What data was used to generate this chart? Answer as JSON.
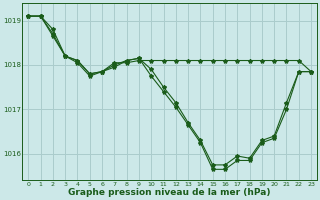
{
  "background_color": "#cce8e8",
  "grid_color": "#aacccc",
  "line_color": "#1a5c1a",
  "title": "Graphe pression niveau de la mer (hPa)",
  "ylim": [
    1015.4,
    1019.4
  ],
  "xlim": [
    -0.5,
    23.5
  ],
  "yticks": [
    1016,
    1017,
    1018,
    1019
  ],
  "xticks": [
    0,
    1,
    2,
    3,
    4,
    5,
    6,
    7,
    8,
    9,
    10,
    11,
    12,
    13,
    14,
    15,
    16,
    17,
    18,
    19,
    20,
    21,
    22,
    23
  ],
  "series": [
    {
      "x": [
        0,
        1,
        2,
        3,
        4,
        5,
        6,
        7,
        8,
        9,
        10,
        11,
        12,
        13,
        14,
        15,
        16,
        17,
        18,
        19,
        20,
        21,
        22,
        23
      ],
      "y": [
        1019.1,
        1019.1,
        1018.8,
        1018.2,
        1018.1,
        1017.8,
        1017.85,
        1018.05,
        1018.05,
        1018.1,
        1018.1,
        1018.1,
        1018.1,
        1018.1,
        1018.1,
        1018.1,
        1018.1,
        1018.1,
        1018.1,
        1018.1,
        1018.1,
        1018.1,
        1018.1,
        1017.85
      ]
    },
    {
      "x": [
        0,
        1,
        2,
        3,
        4,
        5,
        6,
        7,
        8,
        9,
        10,
        11,
        12,
        13,
        14,
        15,
        16,
        17,
        18,
        19,
        20,
        21,
        22,
        23
      ],
      "y": [
        1019.1,
        1019.1,
        1018.7,
        1018.2,
        1018.1,
        1017.8,
        1017.85,
        1018.0,
        1018.1,
        1018.15,
        1017.9,
        1017.5,
        1017.15,
        1016.7,
        1016.3,
        1015.75,
        1015.75,
        1015.95,
        1015.9,
        1016.3,
        1016.4,
        1017.15,
        1017.85,
        1017.85
      ]
    },
    {
      "x": [
        0,
        1,
        2,
        3,
        4,
        5,
        6,
        7,
        8,
        9,
        10,
        11,
        12,
        13,
        14,
        15,
        16,
        17,
        18,
        19,
        20,
        21,
        22,
        23
      ],
      "y": [
        1019.1,
        1019.1,
        1018.65,
        1018.2,
        1018.05,
        1017.75,
        1017.85,
        1017.95,
        1018.1,
        1018.15,
        1017.75,
        1017.4,
        1017.05,
        1016.65,
        1016.25,
        1015.65,
        1015.65,
        1015.85,
        1015.85,
        1016.25,
        1016.35,
        1017.0,
        1017.85,
        1017.85
      ]
    }
  ]
}
